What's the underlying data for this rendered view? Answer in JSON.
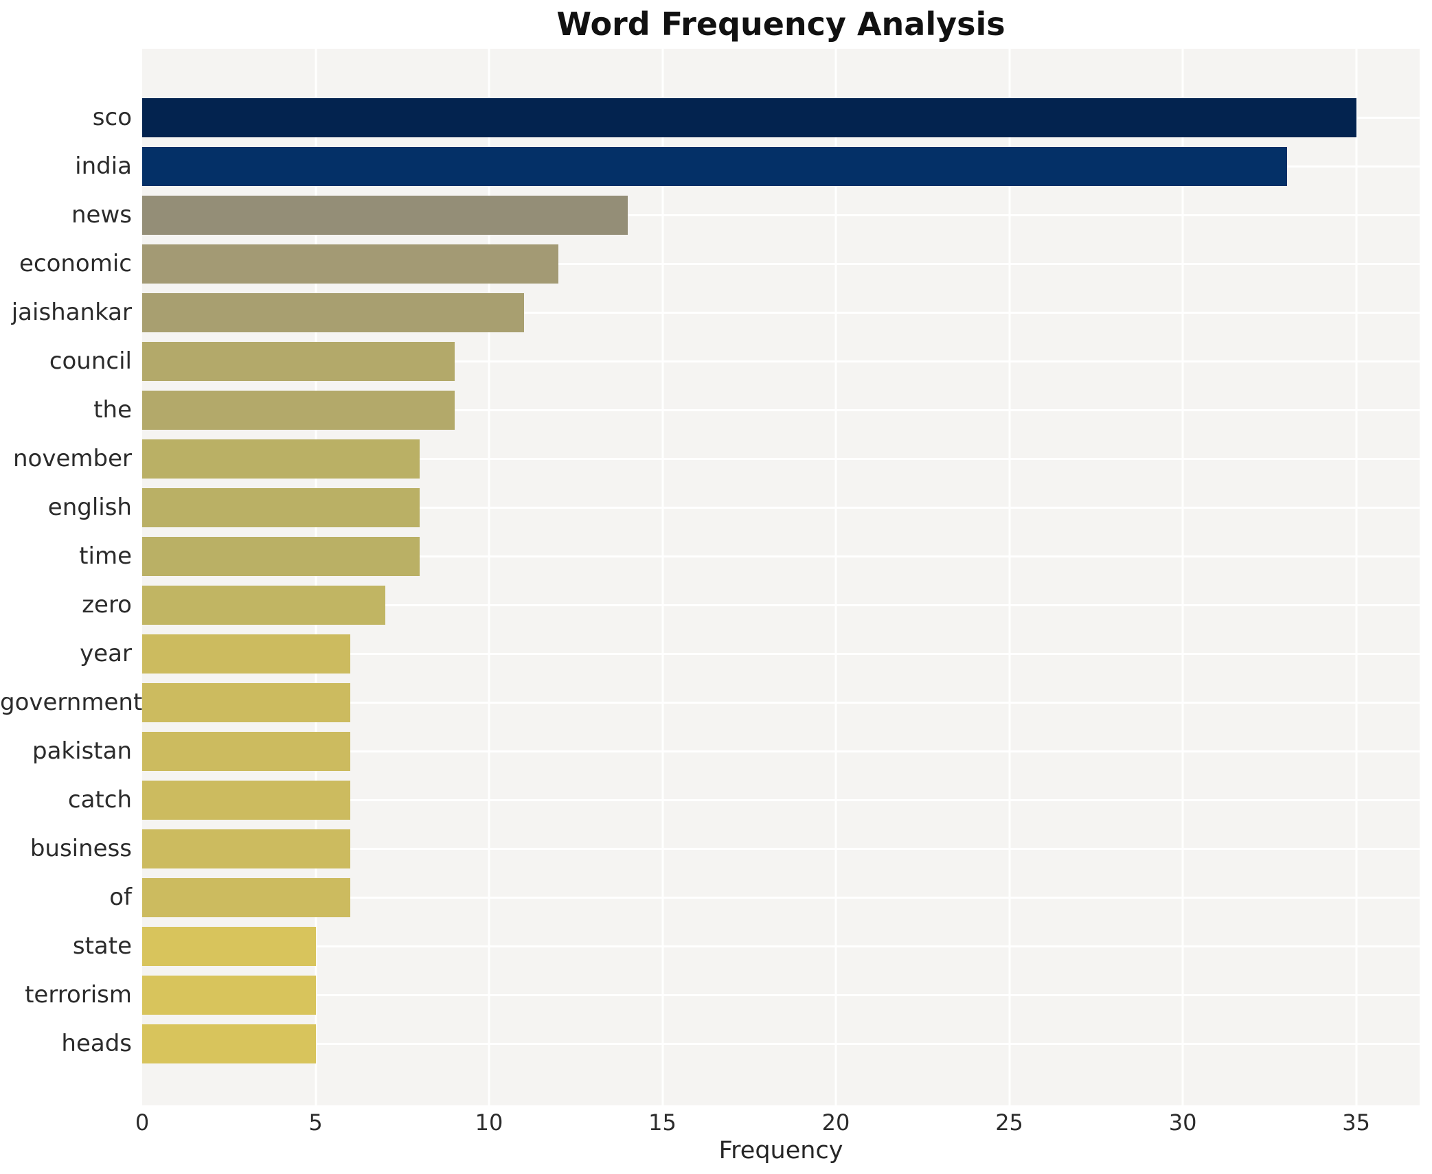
{
  "title": "Word Frequency Analysis",
  "xlabel": "Frequency",
  "chart_data": {
    "type": "bar",
    "orientation": "horizontal",
    "title": "Word Frequency Analysis",
    "xlabel": "Frequency",
    "ylabel": "",
    "categories": [
      "sco",
      "india",
      "news",
      "economic",
      "jaishankar",
      "council",
      "the",
      "november",
      "english",
      "time",
      "zero",
      "year",
      "government",
      "pakistan",
      "catch",
      "business",
      "of",
      "state",
      "terrorism",
      "heads"
    ],
    "values": [
      35,
      33,
      14,
      12,
      11,
      9,
      9,
      8,
      8,
      8,
      7,
      6,
      6,
      6,
      6,
      6,
      6,
      5,
      5,
      5
    ],
    "bar_colors": [
      "#03234f",
      "#043067",
      "#948e77",
      "#a39a74",
      "#a89f70",
      "#b3a96a",
      "#b3a96a",
      "#bab065",
      "#bab065",
      "#bab065",
      "#c1b563",
      "#ccbb5f",
      "#ccbb5f",
      "#ccbb5f",
      "#ccbb5f",
      "#ccbb5f",
      "#ccbb5f",
      "#d8c45c",
      "#d8c45c",
      "#d8c45c"
    ],
    "xlim": [
      0,
      36.83
    ],
    "xticks": [
      0,
      5,
      10,
      15,
      20,
      25,
      30,
      35
    ],
    "grid": "on",
    "grid_color": "#ffffff",
    "plot_background": "#f5f4f2",
    "figure_background": "#ffffff",
    "colormap": "cividis (reversed by value)",
    "legend": "none"
  }
}
